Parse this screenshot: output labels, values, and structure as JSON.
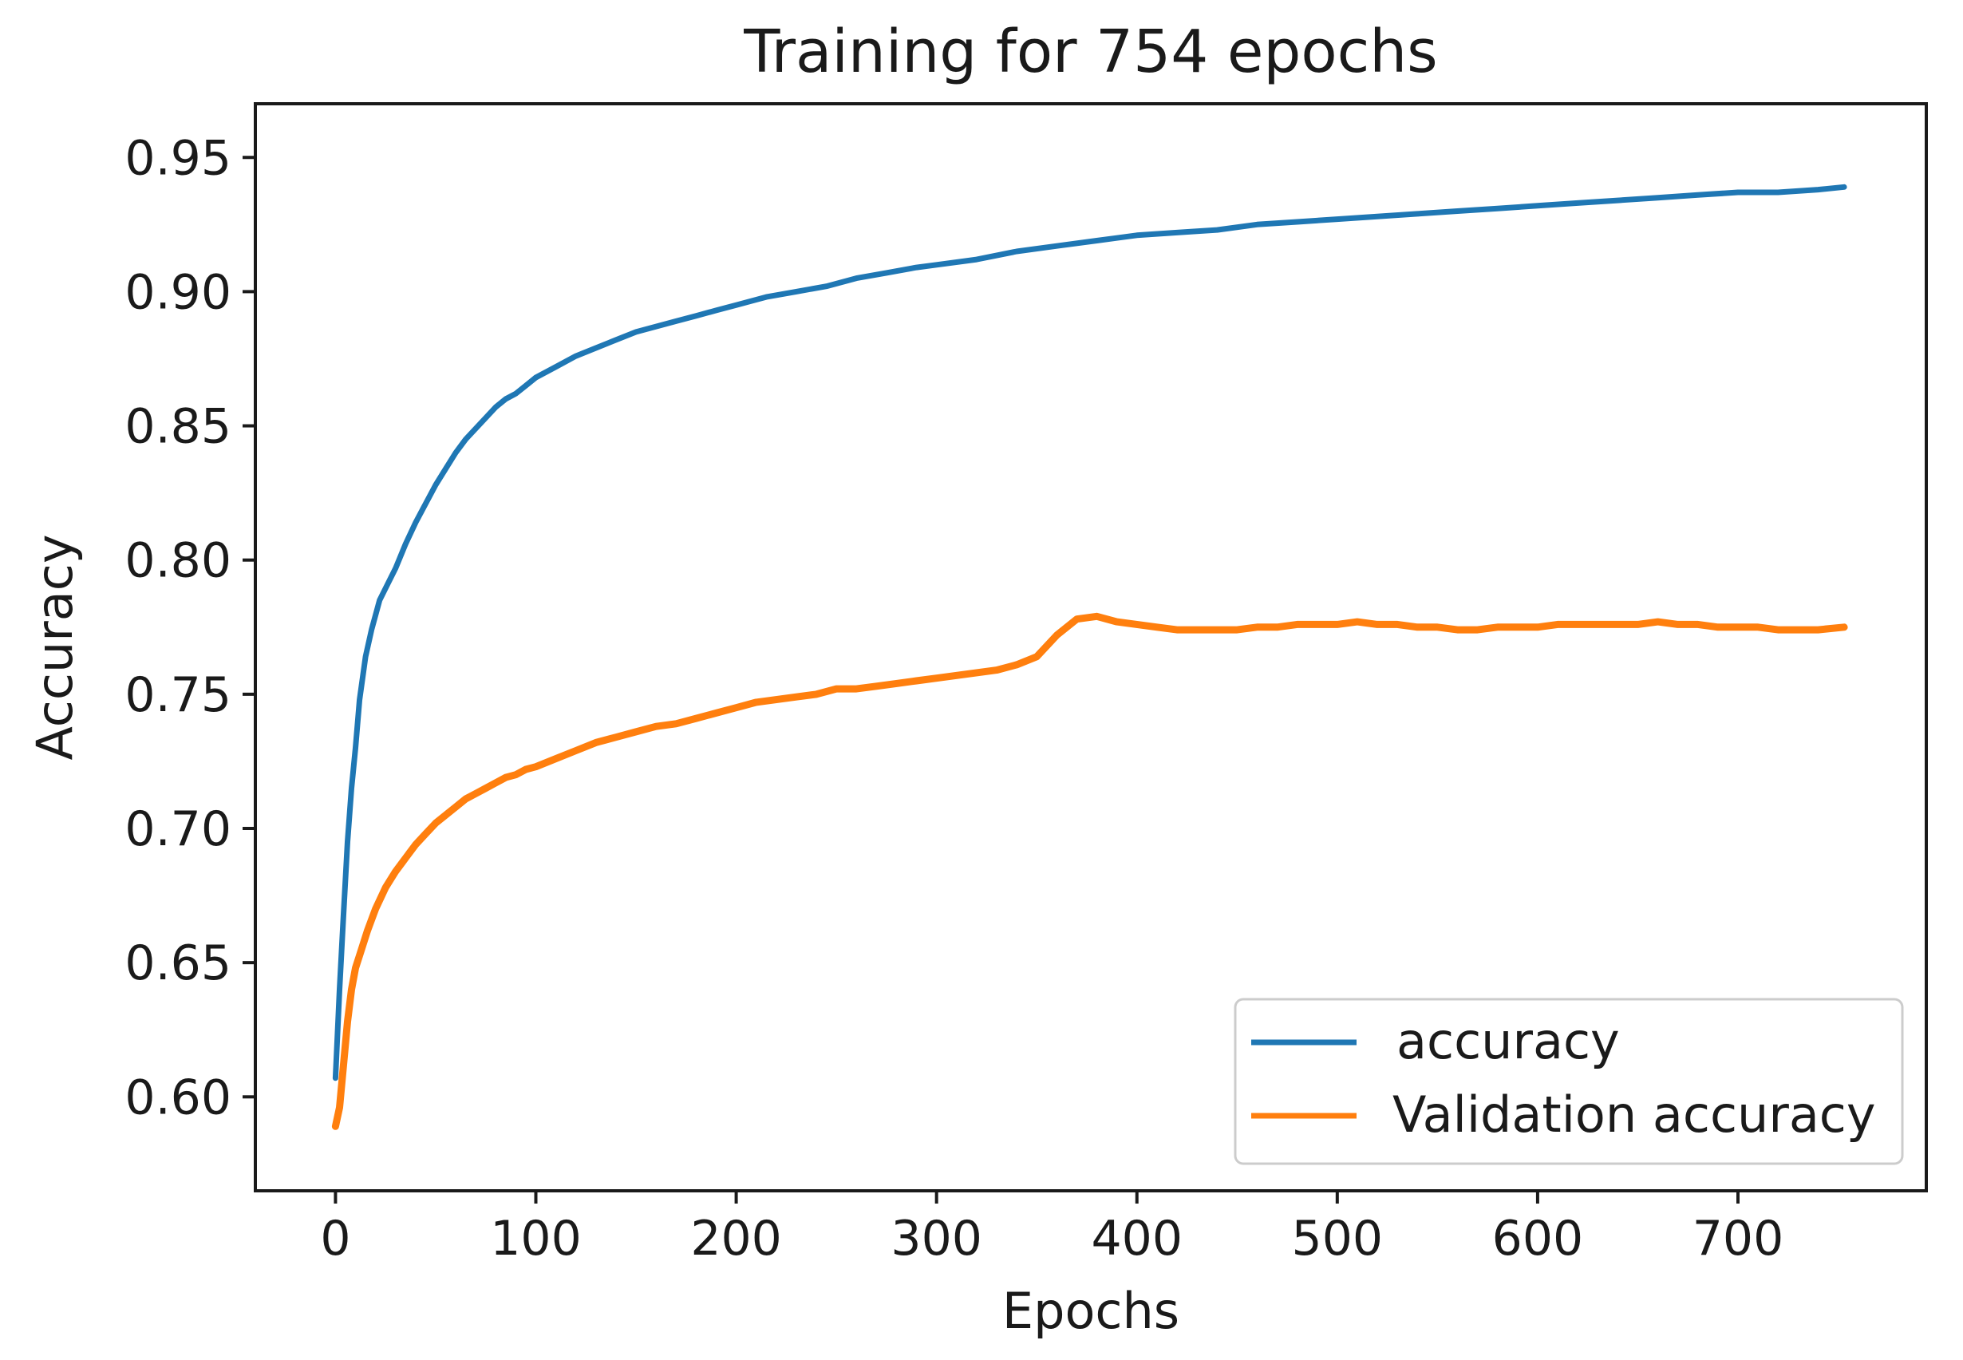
{
  "chart_data": {
    "type": "line",
    "title": "Training for 754 epochs",
    "xlabel": "Epochs",
    "ylabel": "Accuracy",
    "xlim": [
      -40,
      794
    ],
    "ylim": [
      0.565,
      0.97
    ],
    "xticks": [
      0,
      100,
      200,
      300,
      400,
      500,
      600,
      700
    ],
    "xtick_labels": [
      "0",
      "100",
      "200",
      "300",
      "400",
      "500",
      "600",
      "700"
    ],
    "yticks": [
      0.6,
      0.65,
      0.7,
      0.75,
      0.8,
      0.85,
      0.9,
      0.95
    ],
    "ytick_labels": [
      "0.60",
      "0.65",
      "0.70",
      "0.75",
      "0.80",
      "0.85",
      "0.90",
      "0.95"
    ],
    "grid": false,
    "legend_position": "lower-right",
    "series": [
      {
        "name": "accuracy",
        "color": "#1f77b4",
        "x": [
          0,
          2,
          4,
          6,
          8,
          10,
          12,
          15,
          18,
          22,
          26,
          30,
          35,
          40,
          45,
          50,
          55,
          60,
          65,
          70,
          75,
          80,
          85,
          90,
          95,
          100,
          110,
          120,
          130,
          140,
          150,
          160,
          170,
          180,
          190,
          200,
          215,
          230,
          245,
          260,
          275,
          290,
          300,
          320,
          340,
          360,
          380,
          400,
          420,
          440,
          460,
          480,
          500,
          520,
          540,
          560,
          580,
          600,
          620,
          640,
          660,
          680,
          700,
          720,
          740,
          753
        ],
        "values": [
          0.607,
          0.64,
          0.668,
          0.695,
          0.715,
          0.73,
          0.748,
          0.764,
          0.774,
          0.785,
          0.791,
          0.797,
          0.806,
          0.814,
          0.821,
          0.828,
          0.834,
          0.84,
          0.845,
          0.849,
          0.853,
          0.857,
          0.86,
          0.862,
          0.865,
          0.868,
          0.872,
          0.876,
          0.879,
          0.882,
          0.885,
          0.887,
          0.889,
          0.891,
          0.893,
          0.895,
          0.898,
          0.9,
          0.902,
          0.905,
          0.907,
          0.909,
          0.91,
          0.912,
          0.915,
          0.917,
          0.919,
          0.921,
          0.922,
          0.923,
          0.925,
          0.926,
          0.927,
          0.928,
          0.929,
          0.93,
          0.931,
          0.932,
          0.933,
          0.934,
          0.935,
          0.936,
          0.937,
          0.937,
          0.938,
          0.939
        ]
      },
      {
        "name": "Validation accuracy",
        "color": "#ff7f0e",
        "x": [
          0,
          2,
          4,
          6,
          8,
          10,
          13,
          16,
          20,
          25,
          30,
          35,
          40,
          45,
          50,
          55,
          60,
          65,
          70,
          75,
          80,
          85,
          90,
          95,
          100,
          110,
          120,
          130,
          140,
          150,
          160,
          170,
          180,
          190,
          200,
          210,
          220,
          230,
          240,
          250,
          260,
          270,
          280,
          290,
          300,
          310,
          320,
          330,
          340,
          350,
          360,
          370,
          380,
          390,
          400,
          410,
          420,
          430,
          440,
          450,
          460,
          470,
          480,
          490,
          500,
          510,
          520,
          530,
          540,
          550,
          560,
          570,
          580,
          590,
          600,
          610,
          620,
          630,
          640,
          650,
          660,
          670,
          680,
          690,
          700,
          710,
          720,
          730,
          740,
          753
        ],
        "values": [
          0.589,
          0.596,
          0.612,
          0.628,
          0.64,
          0.648,
          0.655,
          0.662,
          0.67,
          0.678,
          0.684,
          0.689,
          0.694,
          0.698,
          0.702,
          0.705,
          0.708,
          0.711,
          0.713,
          0.715,
          0.717,
          0.719,
          0.72,
          0.722,
          0.723,
          0.726,
          0.729,
          0.732,
          0.734,
          0.736,
          0.738,
          0.739,
          0.741,
          0.743,
          0.745,
          0.747,
          0.748,
          0.749,
          0.75,
          0.752,
          0.752,
          0.753,
          0.754,
          0.755,
          0.756,
          0.757,
          0.758,
          0.759,
          0.761,
          0.764,
          0.772,
          0.778,
          0.779,
          0.777,
          0.776,
          0.775,
          0.774,
          0.774,
          0.774,
          0.774,
          0.775,
          0.775,
          0.776,
          0.776,
          0.776,
          0.777,
          0.776,
          0.776,
          0.775,
          0.775,
          0.774,
          0.774,
          0.775,
          0.775,
          0.775,
          0.776,
          0.776,
          0.776,
          0.776,
          0.776,
          0.777,
          0.776,
          0.776,
          0.775,
          0.775,
          0.775,
          0.774,
          0.774,
          0.774,
          0.775
        ]
      }
    ]
  }
}
